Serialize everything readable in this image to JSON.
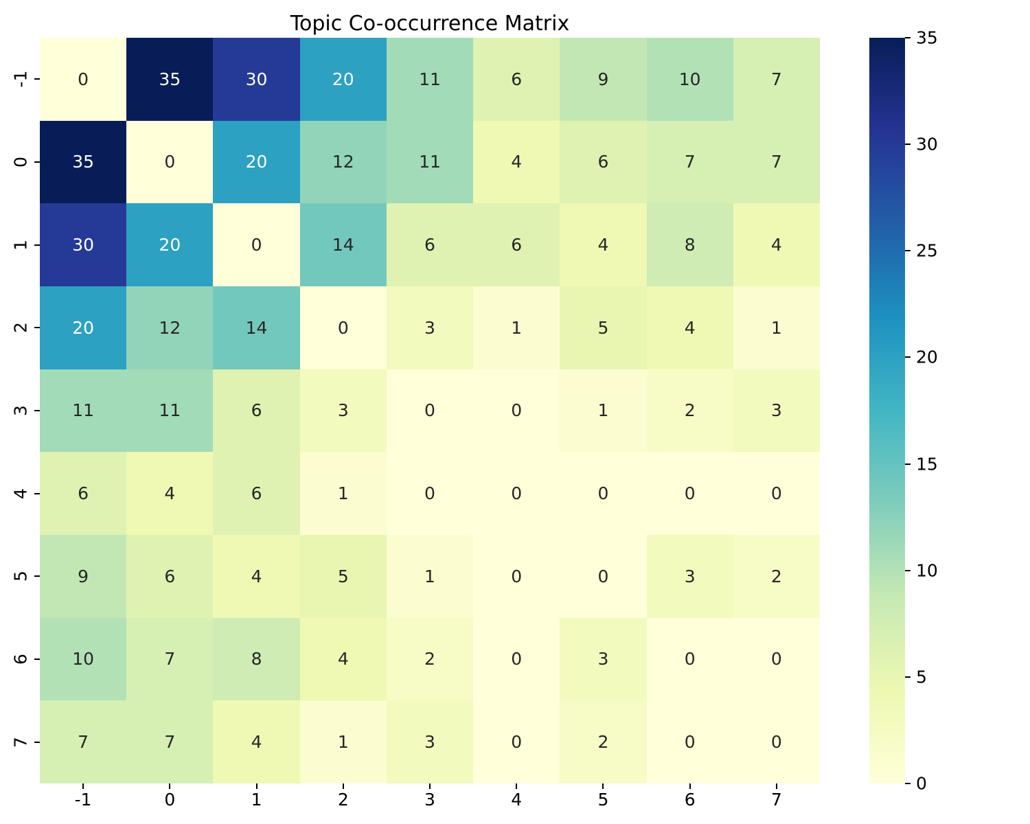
{
  "chart_data": {
    "type": "heatmap",
    "title": "Topic Co-occurrence Matrix",
    "x_labels": [
      "-1",
      "0",
      "1",
      "2",
      "3",
      "4",
      "5",
      "6",
      "7"
    ],
    "y_labels": [
      "-1",
      "0",
      "1",
      "2",
      "3",
      "4",
      "5",
      "6",
      "7"
    ],
    "matrix": [
      [
        0,
        35,
        30,
        20,
        11,
        6,
        9,
        10,
        7
      ],
      [
        35,
        0,
        20,
        12,
        11,
        4,
        6,
        7,
        7
      ],
      [
        30,
        20,
        0,
        14,
        6,
        6,
        4,
        8,
        4
      ],
      [
        20,
        12,
        14,
        0,
        3,
        1,
        5,
        4,
        1
      ],
      [
        11,
        11,
        6,
        3,
        0,
        0,
        1,
        2,
        3
      ],
      [
        6,
        4,
        6,
        1,
        0,
        0,
        0,
        0,
        0
      ],
      [
        9,
        6,
        4,
        5,
        1,
        0,
        0,
        3,
        2
      ],
      [
        10,
        7,
        8,
        4,
        2,
        0,
        3,
        0,
        0
      ],
      [
        7,
        7,
        4,
        1,
        3,
        0,
        2,
        0,
        0
      ]
    ],
    "vmin": 0,
    "vmax": 35,
    "colorbar_ticks": [
      0,
      5,
      10,
      15,
      20,
      25,
      30,
      35
    ],
    "colormap": {
      "name": "YlGnBu",
      "stops": [
        "#ffffd9",
        "#edf8b1",
        "#c7e9b4",
        "#7fcdbb",
        "#41b6c4",
        "#1d91c0",
        "#225ea8",
        "#253494",
        "#081d58"
      ]
    },
    "annotation_colors": {
      "light_text": "#ffffff",
      "dark_text": "#262626"
    },
    "grid": false,
    "legend_position": "right-colorbar"
  }
}
